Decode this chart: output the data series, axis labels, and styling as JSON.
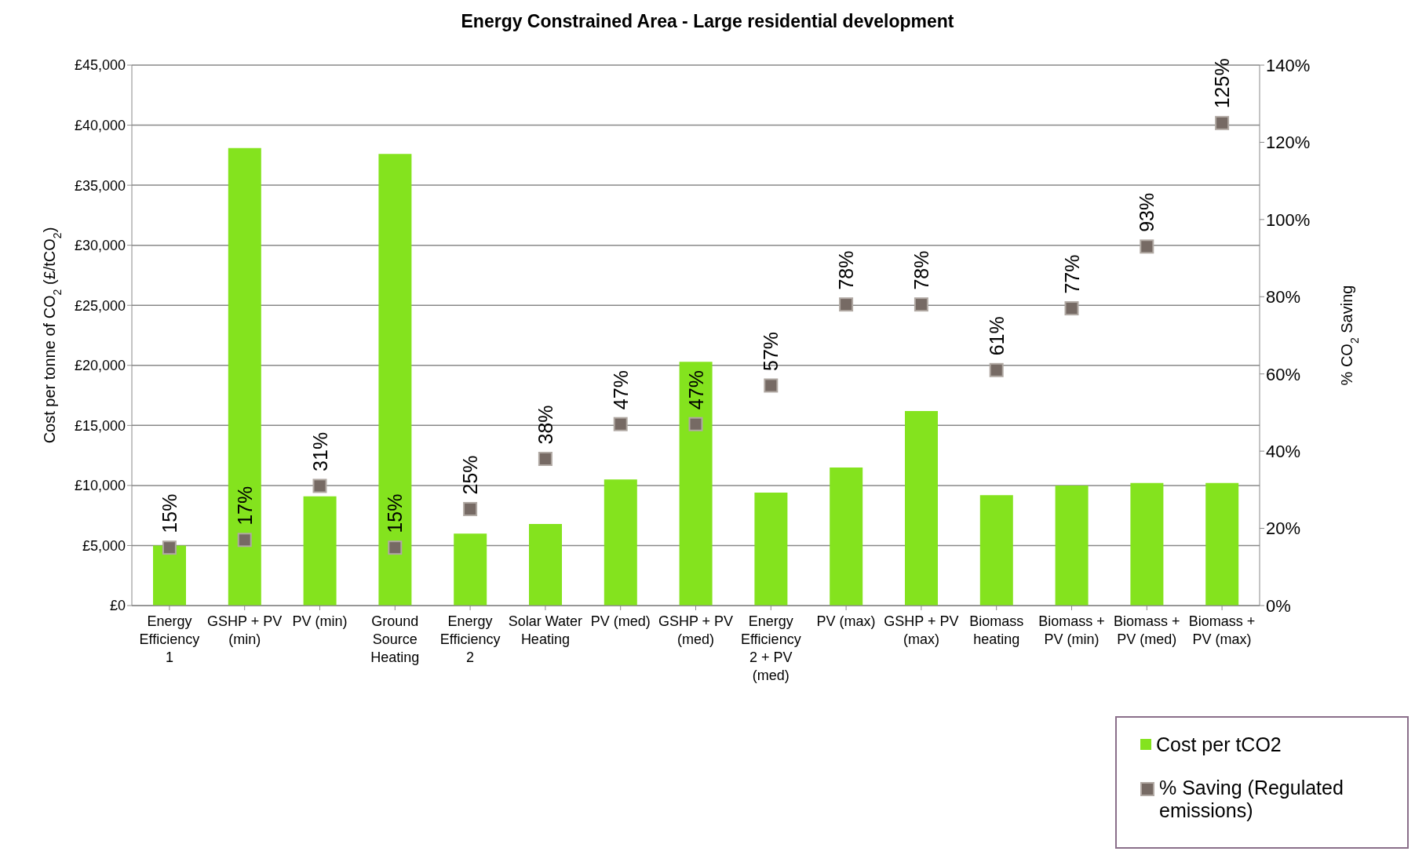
{
  "chart_data": {
    "type": "bar",
    "title": "Energy Constrained Area - Large residential development",
    "ylabel": "Cost per tonne of CO$_{2}$ (£/tCO$_{2}$)",
    "y2label": "% CO$_{2}$ Saving",
    "categories": [
      "Energy Efficiency 1",
      "GSHP + PV (min)",
      "PV (min)",
      "Ground Source Heating",
      "Energy Efficiency 2",
      "Solar Water Heating",
      "PV (med)",
      "GSHP + PV (med)",
      "Energy Efficiency 2 + PV (med)",
      "PV (max)",
      "GSHP + PV (max)",
      "Biomass heating",
      "Biomass + PV (min)",
      "Biomass + PV (med)",
      "Biomass + PV (max)"
    ],
    "series": [
      {
        "name": "Cost per tCO2",
        "color": "#84e31e",
        "values": [
          5000,
          38100,
          9100,
          37600,
          6000,
          6800,
          10500,
          20300,
          9400,
          11500,
          16200,
          9200,
          10000,
          10200,
          10200
        ]
      },
      {
        "name": "% Saving (Regulated emissions)",
        "type": "scatter",
        "axis": "y2",
        "color": "#766a64",
        "values": [
          15,
          17,
          31,
          15,
          25,
          38,
          47,
          47,
          57,
          78,
          78,
          61,
          77,
          93,
          125
        ],
        "value_labels": [
          "15%",
          "17%",
          "31%",
          "15%",
          "25%",
          "38%",
          "47%",
          "47%",
          "57%",
          "78%",
          "78%",
          "61%",
          "77%",
          "93%",
          "125%"
        ]
      }
    ],
    "ylim": [
      0,
      45000
    ],
    "yticks": [
      {
        "value": 0,
        "label": "£0"
      },
      {
        "value": 5000,
        "label": "£5,000"
      },
      {
        "value": 10000,
        "label": "£10,000"
      },
      {
        "value": 15000,
        "label": "£15,000"
      },
      {
        "value": 20000,
        "label": "£20,000"
      },
      {
        "value": 25000,
        "label": "£25,000"
      },
      {
        "value": 30000,
        "label": "£30,000"
      },
      {
        "value": 35000,
        "label": "£35,000"
      },
      {
        "value": 40000,
        "label": "£40,000"
      },
      {
        "value": 45000,
        "label": "£45,000"
      }
    ],
    "y2lim": [
      0,
      140
    ],
    "y2ticks": [
      {
        "value": 0,
        "label": "0%"
      },
      {
        "value": 20,
        "label": "20%"
      },
      {
        "value": 40,
        "label": "40%"
      },
      {
        "value": 60,
        "label": "60%"
      },
      {
        "value": 80,
        "label": "80%"
      },
      {
        "value": 100,
        "label": "100%"
      },
      {
        "value": 120,
        "label": "120%"
      },
      {
        "value": 140,
        "label": "140%"
      }
    ],
    "grid": "y",
    "marker": "square",
    "legend": "bottom right"
  }
}
